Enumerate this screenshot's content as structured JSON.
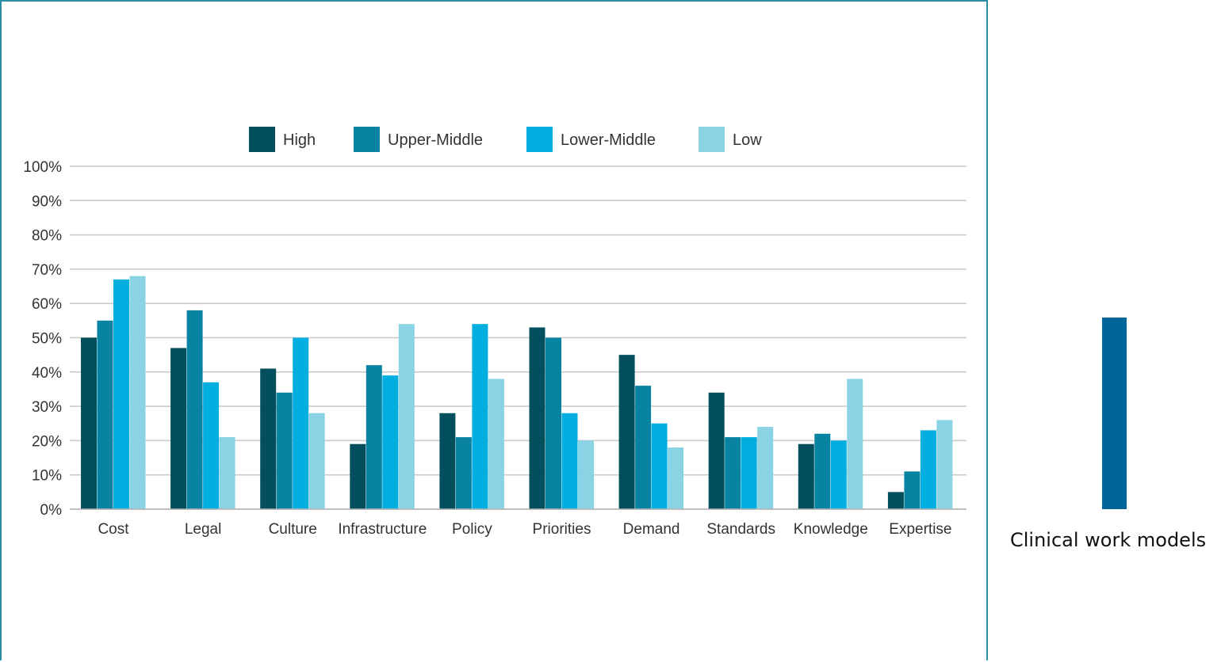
{
  "colors": {
    "frame_border": "#2a8fa5",
    "grid": "#c8c8c8",
    "axis_text": "#333333",
    "side_bar": "#006699"
  },
  "side_label": "Clinical work models",
  "chart_data": {
    "type": "bar",
    "categories": [
      "Cost",
      "Legal",
      "Culture",
      "Infrastructure",
      "Policy",
      "Priorities",
      "Demand",
      "Standards",
      "Knowledge",
      "Expertise"
    ],
    "series": [
      {
        "name": "High",
        "color": "#034f5d",
        "values": [
          50,
          47,
          41,
          19,
          28,
          53,
          45,
          34,
          19,
          5
        ]
      },
      {
        "name": "Upper-Middle",
        "color": "#0884a2",
        "values": [
          55,
          58,
          34,
          42,
          21,
          50,
          36,
          21,
          22,
          11
        ]
      },
      {
        "name": "Lower-Middle",
        "color": "#00afe0",
        "values": [
          67,
          37,
          50,
          39,
          54,
          28,
          25,
          21,
          20,
          23
        ]
      },
      {
        "name": "Low",
        "color": "#89d3e4",
        "values": [
          68,
          21,
          28,
          54,
          38,
          20,
          18,
          24,
          38,
          26
        ]
      }
    ],
    "yticks": [
      "0%",
      "10%",
      "20%",
      "30%",
      "40%",
      "50%",
      "60%",
      "70%",
      "80%",
      "90%",
      "100%"
    ],
    "ylim": [
      0,
      100
    ],
    "legend_position": "top",
    "grid": true
  }
}
